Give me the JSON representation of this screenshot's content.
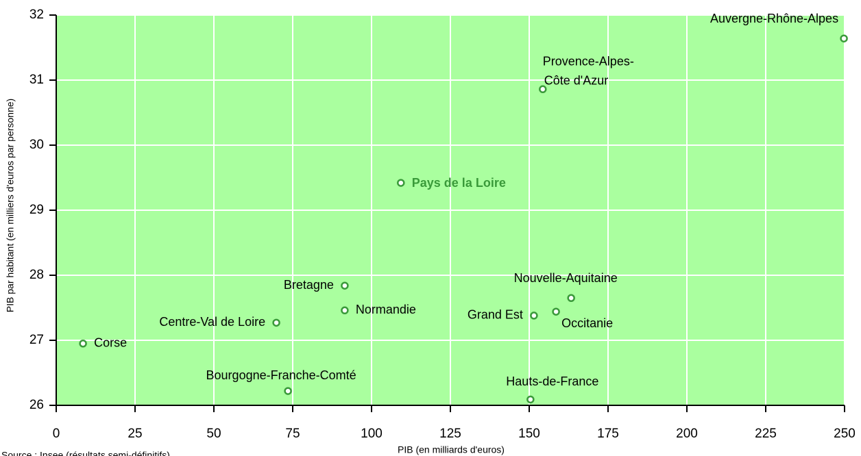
{
  "chart_data": {
    "type": "scatter",
    "xlabel": "PIB (en milliards d'euros)",
    "ylabel": "PIB par habitant (en milliers d'euros par personne)",
    "source": "Source : Insee (résultats semi-définitifs)",
    "labels": [
      "Auvergne-Rhône-Alpes",
      "Provence-Alpes-Côte d'Azur",
      "Pays de la Loire",
      "Bretagne",
      "Normandie",
      "Centre-Val de Loire",
      "Corse",
      "Bourgogne-Franche-Comté",
      "Hauts-de-France",
      "Nouvelle-Aquitaine",
      "Grand Est",
      "Occitanie"
    ],
    "x": [
      249.8,
      154.3,
      109.3,
      91.5,
      91.5,
      69.8,
      8.5,
      73.5,
      150.4,
      163.3,
      151.5,
      158.5
    ],
    "values": [
      31.64,
      30.86,
      29.42,
      27.84,
      27.46,
      27.27,
      26.95,
      26.22,
      26.09,
      27.65,
      27.38,
      27.44
    ],
    "color": "#3a9a3a",
    "background": "#aaff9f",
    "highlight": 2,
    "xlim": [
      0,
      250
    ],
    "xticks": [
      0,
      25,
      50,
      75,
      100,
      125,
      150,
      175,
      200,
      225,
      250
    ],
    "ylim": [
      26,
      32
    ],
    "yticks": [
      26,
      27,
      28,
      29,
      30,
      31,
      32
    ],
    "grid": true
  }
}
